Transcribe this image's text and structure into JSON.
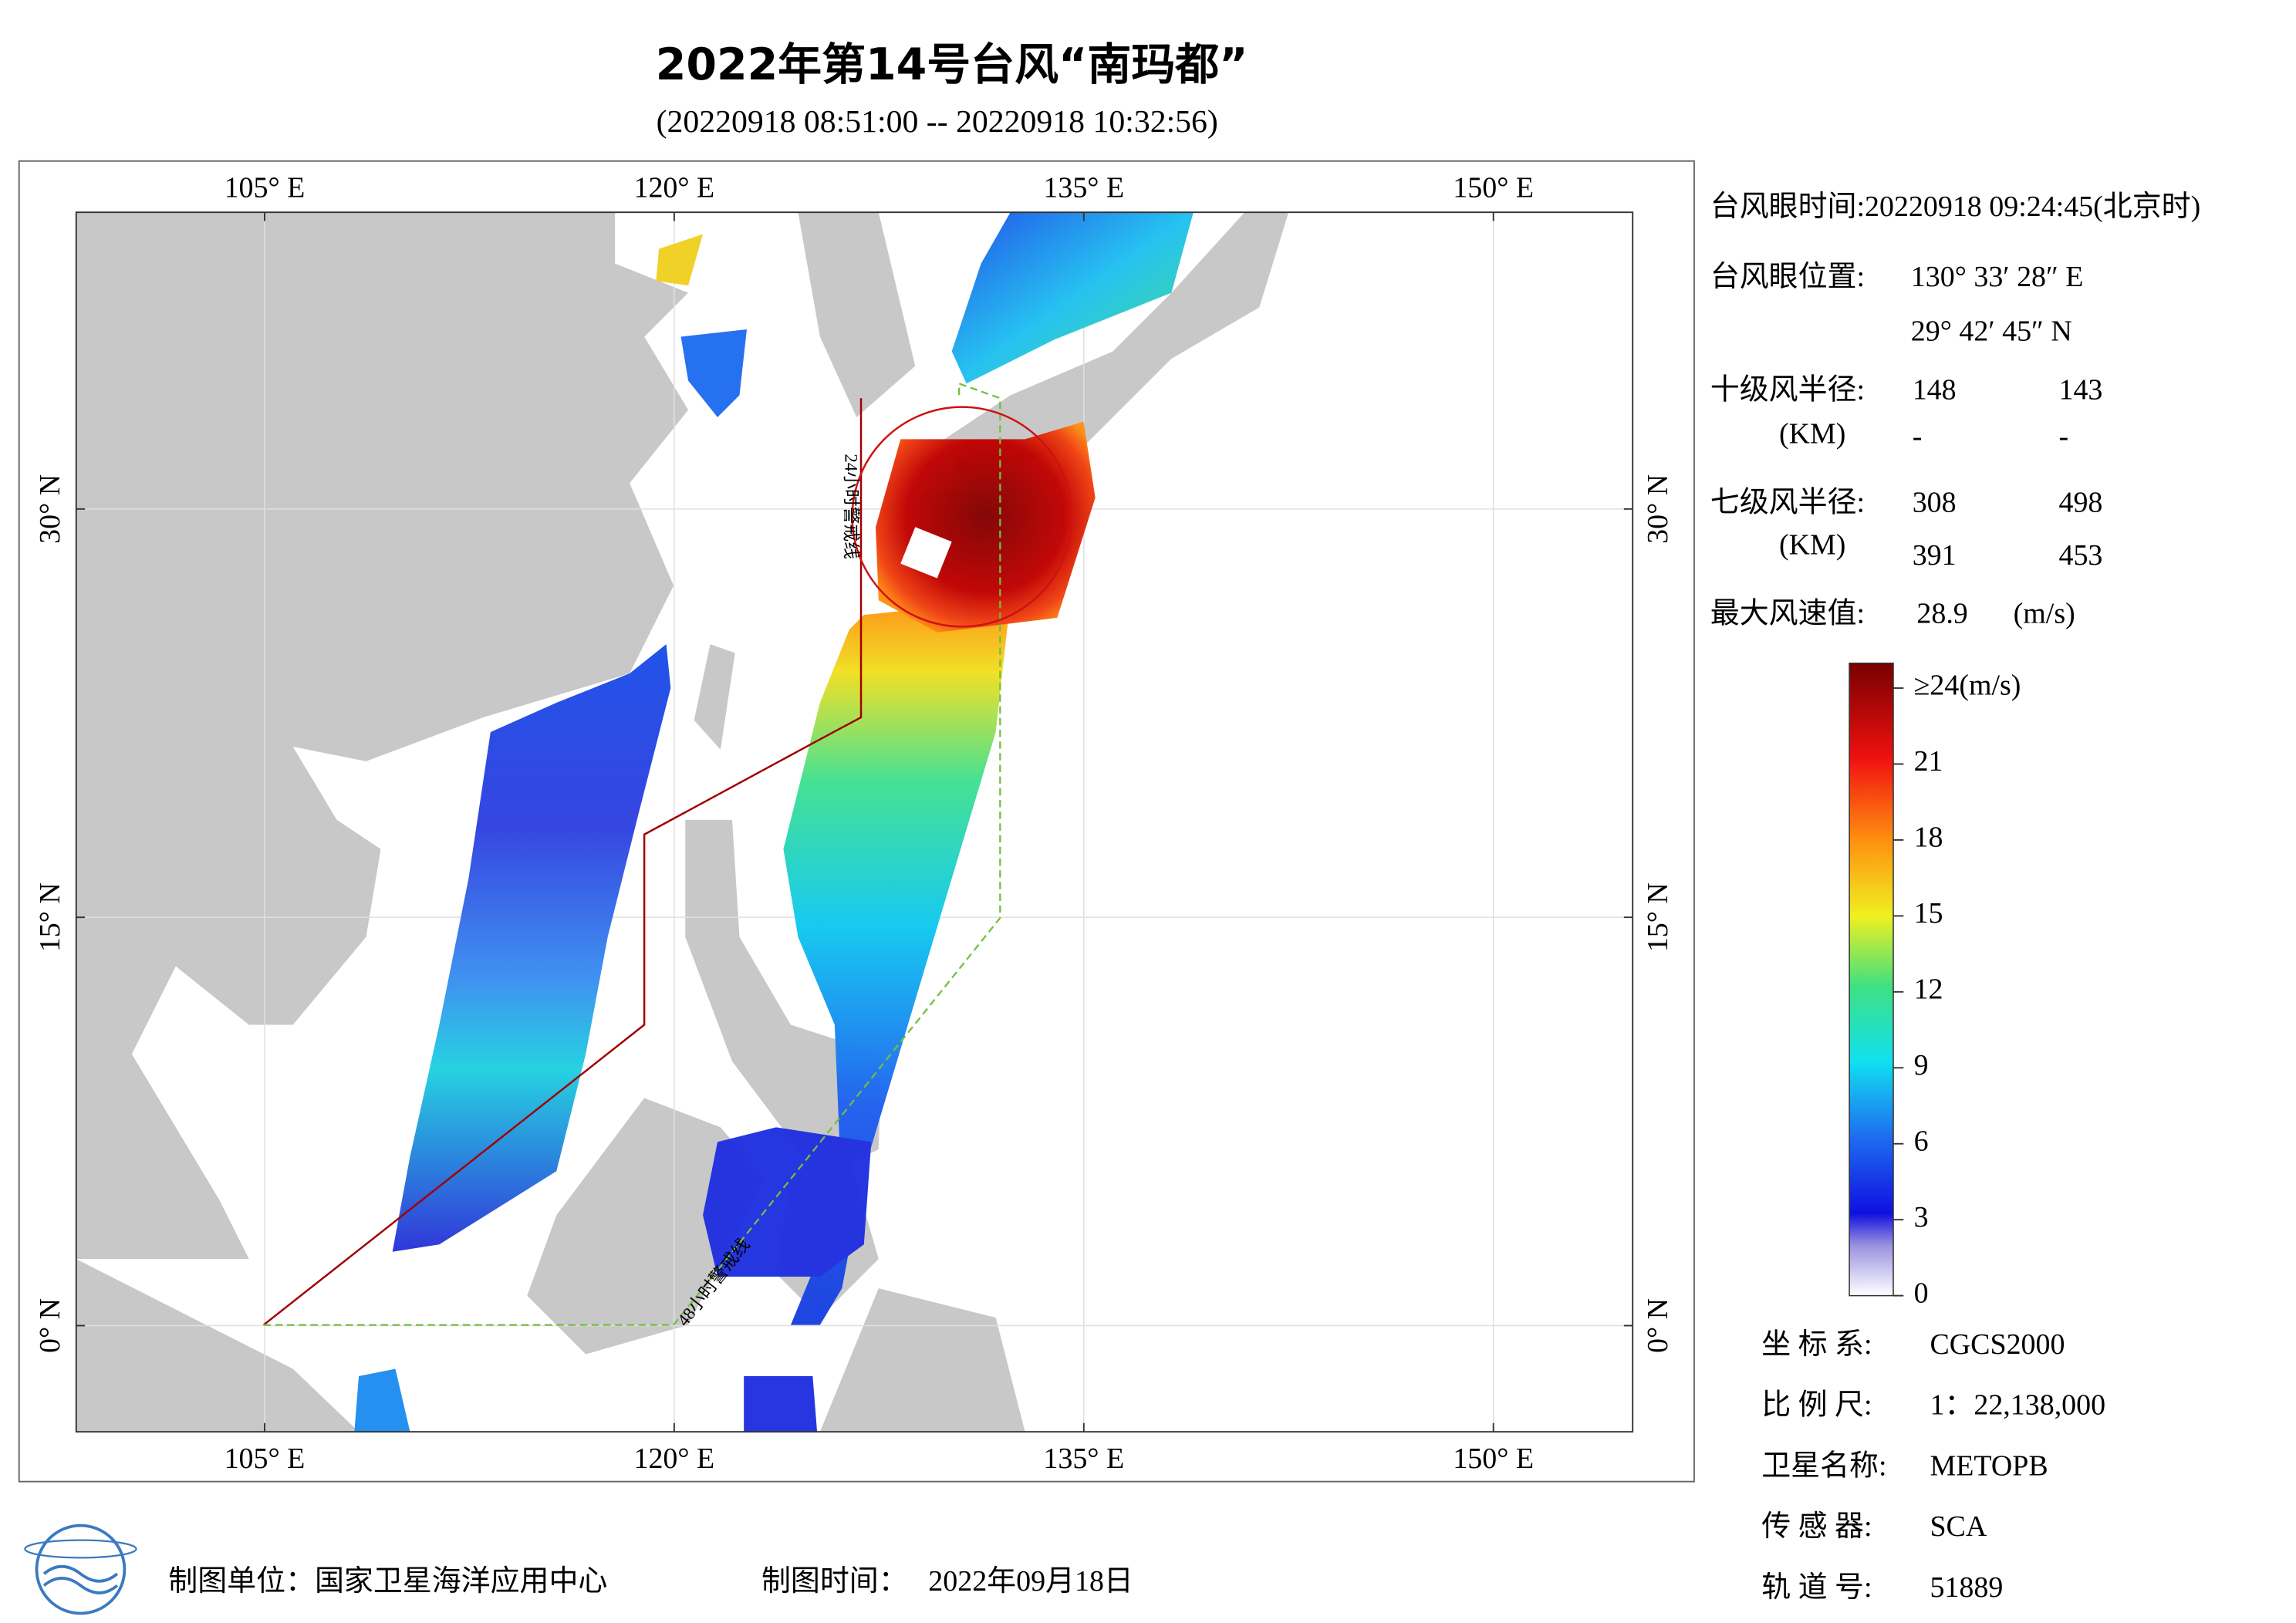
{
  "title": "2022年第14号台风“南玛都”",
  "subtitle": "(20220918 08:51:00 -- 20220918 10:32:56)",
  "map": {
    "lon_range": [
      98.1,
      155.1
    ],
    "lat_range": [
      -3.9,
      40.9
    ],
    "lon_ticks": [
      {
        "value": 105,
        "label": "105° E"
      },
      {
        "value": 120,
        "label": "120° E"
      },
      {
        "value": 135,
        "label": "135° E"
      },
      {
        "value": 150,
        "label": "150° E"
      }
    ],
    "lat_ticks": [
      {
        "value": 0,
        "label": "0° N"
      },
      {
        "value": 15,
        "label": "15° N"
      },
      {
        "value": 30,
        "label": "30° N"
      }
    ],
    "warning_24h": "24小时警戒线",
    "warning_48h": "48小时警戒线"
  },
  "info": {
    "eye_time": "台风眼时间:20220918 09:24:45(北京时)",
    "eye_pos_label": "台风眼位置:",
    "eye_lon": "130° 33′ 28″ E",
    "eye_lat": "29° 42′ 45″ N",
    "r10_label": "十级风半径:",
    "r10_unit": "(KM)",
    "r10": [
      [
        "148",
        "143"
      ],
      [
        "-",
        "-"
      ]
    ],
    "r7_label": "七级风半径:",
    "r7_unit": "(KM)",
    "r7": [
      [
        "308",
        "498"
      ],
      [
        "391",
        "453"
      ]
    ],
    "max_wind": {
      "label": "最大风速值:",
      "value": 28.9,
      "unit": "(m/s)"
    }
  },
  "colorbar": {
    "ticks": [
      0,
      3,
      6,
      9,
      12,
      15,
      18,
      21,
      {
        "value": 24,
        "label": "≥24(m/s)"
      }
    ]
  },
  "meta": [
    {
      "label": "坐 标 系:",
      "value": "CGCS2000"
    },
    {
      "label": "比 例 尺:",
      "value": "1：22,138,000"
    },
    {
      "label": "卫星名称:",
      "value": "METOPB"
    },
    {
      "label": "传 感 器:",
      "value": "SCA"
    },
    {
      "label": "轨 道 号:",
      "value": "51889"
    }
  ],
  "footer": {
    "unit": "制图单位：国家卫星海洋应用中心",
    "time_label": "制图时间：",
    "time": "2022年09月18日"
  }
}
